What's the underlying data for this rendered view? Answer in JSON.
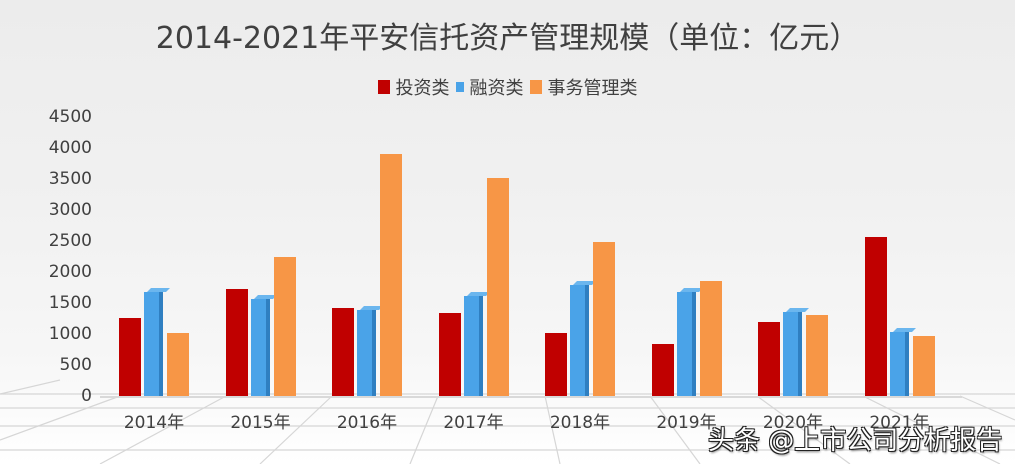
{
  "title": "2014-2021年平安信托资产管理规模（单位：亿元）",
  "legend": [
    {
      "label": "投资类",
      "color": "#c00000"
    },
    {
      "label": "融资类",
      "color": "#4aa3e8"
    },
    {
      "label": "事务管理类",
      "color": "#f79646"
    }
  ],
  "watermark": "头条 @上市公司分析报告",
  "chart_data": {
    "type": "bar",
    "title": "2014-2021年平安信托资产管理规模（单位：亿元）",
    "xlabel": "",
    "ylabel": "",
    "ylim": [
      0,
      4500
    ],
    "yticks": [
      0,
      500,
      1000,
      1500,
      2000,
      2500,
      3000,
      3500,
      4000,
      4500
    ],
    "yticks_labels": [
      "0",
      "500",
      "1000",
      "1500",
      "2000",
      "2500",
      "3000",
      "3500",
      "4000",
      "4500"
    ],
    "categories": [
      "2014年",
      "2015年",
      "2016年",
      "2017年",
      "2018年",
      "2019年",
      "2020年",
      "2021年"
    ],
    "series": [
      {
        "name": "投资类",
        "color": "#c00000",
        "values": [
          1260,
          1730,
          1420,
          1340,
          1020,
          840,
          1190,
          2570
        ]
      },
      {
        "name": "融资类",
        "color": "#4aa3e8",
        "values": [
          1680,
          1570,
          1390,
          1610,
          1790,
          1670,
          1360,
          1040
        ]
      },
      {
        "name": "事务管理类",
        "color": "#f79646",
        "values": [
          1010,
          2240,
          3900,
          3520,
          2480,
          1860,
          1310,
          970
        ]
      }
    ],
    "legend_position": "top",
    "grid": false
  }
}
